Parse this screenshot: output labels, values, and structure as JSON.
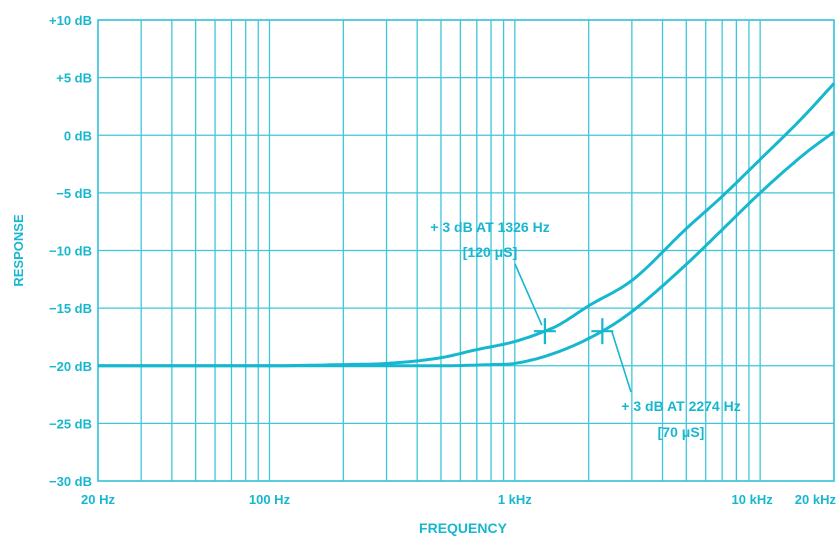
{
  "chart_data": {
    "type": "line",
    "title": "",
    "xlabel": "FREQUENCY",
    "ylabel": "RESPONSE",
    "x_scale": "log",
    "xlim": [
      20,
      20000
    ],
    "ylim": [
      -30,
      10
    ],
    "grid": true,
    "x_tick_labels": [
      "20 Hz",
      "100 Hz",
      "1 kHz",
      "10 kHz",
      "20 kHz"
    ],
    "x_tick_values": [
      20,
      100,
      1000,
      10000,
      20000
    ],
    "y_tick_labels": [
      "+10 dB",
      "+5 dB",
      "0 dB",
      "−5 dB",
      "−10 dB",
      "−15 dB",
      "−20 dB",
      "−25 dB",
      "−30 dB"
    ],
    "y_tick_values": [
      10,
      5,
      0,
      -5,
      -10,
      -15,
      -20,
      -25,
      -30
    ],
    "series": [
      {
        "x": [
          20,
          100,
          200,
          300,
          500,
          700,
          1000,
          1326,
          1500,
          2000,
          3000,
          5000,
          7000,
          10000,
          15000,
          20000
        ],
        "y": [
          -20,
          -20,
          -19.9,
          -19.8,
          -19.3,
          -18.6,
          -17.9,
          -17,
          -16.5,
          -14.8,
          -12.6,
          -8.1,
          -5.3,
          -2.1,
          1.6,
          4.5
        ]
      },
      {
        "x": [
          20,
          100,
          300,
          500,
          800,
          1000,
          1500,
          2274,
          3000,
          5000,
          7000,
          10000,
          15000,
          20000
        ],
        "y": [
          -20,
          -20,
          -20,
          -20,
          -19.9,
          -19.8,
          -18.8,
          -17,
          -15.3,
          -11.2,
          -8.2,
          -5,
          -1.7,
          0.3
        ]
      }
    ],
    "markers": [
      {
        "x": 1326,
        "y": -17
      },
      {
        "x": 2274,
        "y": -17
      }
    ],
    "annotations": [
      {
        "line1": "+ 3 dB AT 1326 Hz",
        "line2": "[120 μS]"
      },
      {
        "line1": "+ 3 dB AT 2274 Hz",
        "line2": "[70 μS]"
      }
    ],
    "colors": {
      "line": "#17b7cf",
      "grid": "#3ec6da",
      "background": "#ffffff"
    }
  }
}
